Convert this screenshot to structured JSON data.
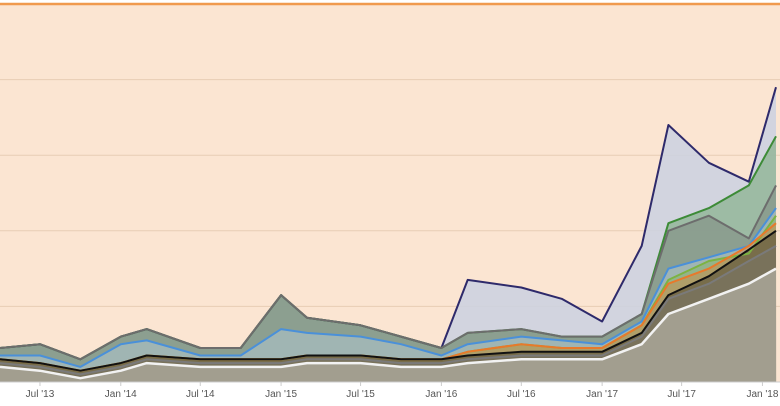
{
  "chart_data": {
    "type": "area",
    "x_axis": {
      "ticks": [
        "Jul '13",
        "Jan '14",
        "Jul '14",
        "Jan '15",
        "Jul '15",
        "Jan '16",
        "Jul '16",
        "Jan '17",
        "Jul '17",
        "Jan '18"
      ],
      "range": [
        "2013-04-01",
        "2018-02-10"
      ]
    },
    "y_axis": {
      "range": [
        0,
        100
      ],
      "gridlines": 5,
      "labels_shown": false
    },
    "grid": true,
    "legend": "none",
    "background_color": "#fbe5d2",
    "top_line_color": "#f09a4e",
    "x": [
      "2013-04",
      "2013-07",
      "2013-10",
      "2014-01",
      "2014-03",
      "2014-07",
      "2014-10",
      "2015-01",
      "2015-03",
      "2015-07",
      "2015-10",
      "2016-01",
      "2016-03",
      "2016-07",
      "2016-10",
      "2017-01",
      "2017-04",
      "2017-06",
      "2017-09",
      "2017-12",
      "2018-02"
    ],
    "series": [
      {
        "color": "#f2f2f2",
        "values": [
          4,
          3,
          1,
          3,
          5,
          4,
          4,
          4,
          5,
          5,
          4,
          4,
          5,
          6,
          6,
          6,
          10,
          18,
          22,
          26,
          30
        ]
      },
      {
        "color": "#7a7a7a",
        "values": [
          5,
          4,
          2,
          4,
          6,
          5,
          5,
          5,
          6,
          6,
          5,
          5,
          6,
          7,
          7,
          7,
          12,
          22,
          26,
          32,
          36
        ]
      },
      {
        "color": "#111111",
        "values": [
          6,
          5,
          3,
          5,
          7,
          6,
          6,
          6,
          7,
          7,
          6,
          6,
          7,
          8,
          8,
          8,
          13,
          23,
          28,
          35,
          40
        ]
      },
      {
        "color": "#e8792b",
        "values": [
          6,
          5,
          3,
          5,
          7,
          6,
          6,
          6,
          7,
          7,
          6,
          6,
          8,
          10,
          9,
          9,
          15,
          26,
          30,
          36,
          42
        ]
      },
      {
        "color": "#7cb342",
        "values": [
          6,
          5,
          3,
          5,
          7,
          6,
          6,
          6,
          7,
          7,
          6,
          6,
          8,
          10,
          9,
          9,
          15,
          27,
          32,
          34,
          44
        ]
      },
      {
        "color": "#4a90d9",
        "values": [
          7,
          7,
          4,
          10,
          11,
          7,
          7,
          14,
          13,
          12,
          10,
          7,
          10,
          12,
          11,
          10,
          16,
          30,
          33,
          36,
          46
        ]
      },
      {
        "color": "#6d6d6d",
        "values": [
          9,
          10,
          6,
          12,
          14,
          9,
          9,
          23,
          17,
          15,
          12,
          9,
          13,
          14,
          12,
          12,
          18,
          40,
          44,
          38,
          52
        ]
      },
      {
        "color": "#3d8b37",
        "values": [
          9,
          10,
          6,
          12,
          14,
          9,
          9,
          23,
          17,
          15,
          12,
          9,
          13,
          14,
          12,
          12,
          18,
          42,
          46,
          52,
          65
        ]
      },
      {
        "color": "#2e2a6b",
        "values": [
          9,
          10,
          6,
          12,
          14,
          9,
          9,
          23,
          17,
          15,
          12,
          9,
          27,
          25,
          22,
          16,
          36,
          68,
          58,
          53,
          78
        ]
      }
    ]
  }
}
